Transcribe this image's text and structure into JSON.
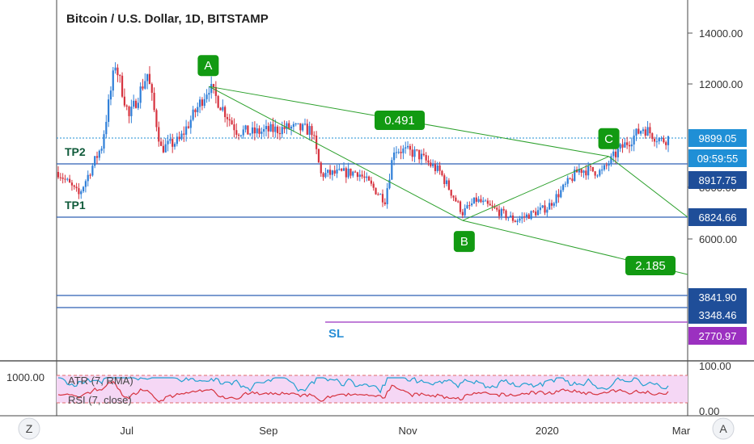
{
  "header": {
    "title": "Bitcoin / U.S. Dollar, 1D, BITSTAMP"
  },
  "colors": {
    "up": "#2f7fd8",
    "down": "#d6333f",
    "level": "#2e5fb5",
    "fib": "#2ca02c",
    "fib_label": "#129a12",
    "sl": "#9b30c0",
    "price_tag": "#1f4e99",
    "current_tag": "#1f8fd6",
    "atr": "#d6333f",
    "rsi": "#22a0d0",
    "rsi_band": "#f5d7f5"
  },
  "chart_data": [
    {
      "type": "candlestick",
      "title": "Bitcoin / U.S. Dollar, 1D, BITSTAMP",
      "xlabel": "",
      "ylabel": "",
      "x_ticks": [
        "Jul",
        "Sep",
        "Nov",
        "2020",
        "Mar"
      ],
      "y_ticks": [
        "14000.00",
        "12000.00",
        "8000.00",
        "6000.00"
      ],
      "y_tick_values": [
        14000,
        12000,
        8000,
        6000
      ],
      "ylim": [
        2500,
        15200
      ],
      "path_waypoints": [
        [
          "2019-06-01",
          8600
        ],
        [
          "2019-06-10",
          7700
        ],
        [
          "2019-06-20",
          9600
        ],
        [
          "2019-06-26",
          12800
        ],
        [
          "2019-07-02",
          10700
        ],
        [
          "2019-07-10",
          12400
        ],
        [
          "2019-07-16",
          9500
        ],
        [
          "2019-07-24",
          9800
        ],
        [
          "2019-08-06",
          11900
        ],
        [
          "2019-08-18",
          10200
        ],
        [
          "2019-08-25",
          10100
        ],
        [
          "2019-09-10",
          10300
        ],
        [
          "2019-09-20",
          10200
        ],
        [
          "2019-09-24",
          8500
        ],
        [
          "2019-10-10",
          8600
        ],
        [
          "2019-10-22",
          7500
        ],
        [
          "2019-10-26",
          9500
        ],
        [
          "2019-11-05",
          9300
        ],
        [
          "2019-11-15",
          8600
        ],
        [
          "2019-11-25",
          7000
        ],
        [
          "2019-12-01",
          7500
        ],
        [
          "2019-12-18",
          6700
        ],
        [
          "2020-01-01",
          7200
        ],
        [
          "2020-01-15",
          8700
        ],
        [
          "2020-01-25",
          8600
        ],
        [
          "2020-02-01",
          9400
        ],
        [
          "2020-02-12",
          10300
        ],
        [
          "2020-02-20",
          9800
        ],
        [
          "2020-02-23",
          9900
        ]
      ],
      "levels": [
        {
          "label": "TP2",
          "price": 8917.75
        },
        {
          "label": "TP1",
          "price": 6824.66
        },
        {
          "label": "",
          "price": 3841.9
        },
        {
          "label": "",
          "price": 3348.46
        }
      ],
      "stop_loss": {
        "label": "SL",
        "price": 2770.97
      },
      "price_tags": [
        "9899.05",
        "09:59:55",
        "8917.75",
        "6824.66",
        "3841.90",
        "3348.46",
        "2770.97"
      ],
      "last_price": 9899.05,
      "pattern_points": [
        {
          "label": "A",
          "date": "2019-08-06",
          "price": 11900
        },
        {
          "label": "B",
          "date": "2019-11-25",
          "price": 6700
        },
        {
          "label": "C",
          "date": "2020-01-28",
          "price": 9200
        }
      ],
      "ratios": [
        "0.491",
        "2.185"
      ]
    },
    {
      "type": "line",
      "series": [
        {
          "name": "ATR (7, RMA)",
          "values_note": "daily"
        },
        {
          "name": "RSI (7, close)",
          "values_note": "daily"
        }
      ],
      "y_ticks_right": [
        "100.00",
        "0.00"
      ],
      "y_tick_left": "1000.00",
      "ylim": [
        0,
        100
      ]
    }
  ],
  "buttons": {
    "left": "Z",
    "right": "A"
  }
}
